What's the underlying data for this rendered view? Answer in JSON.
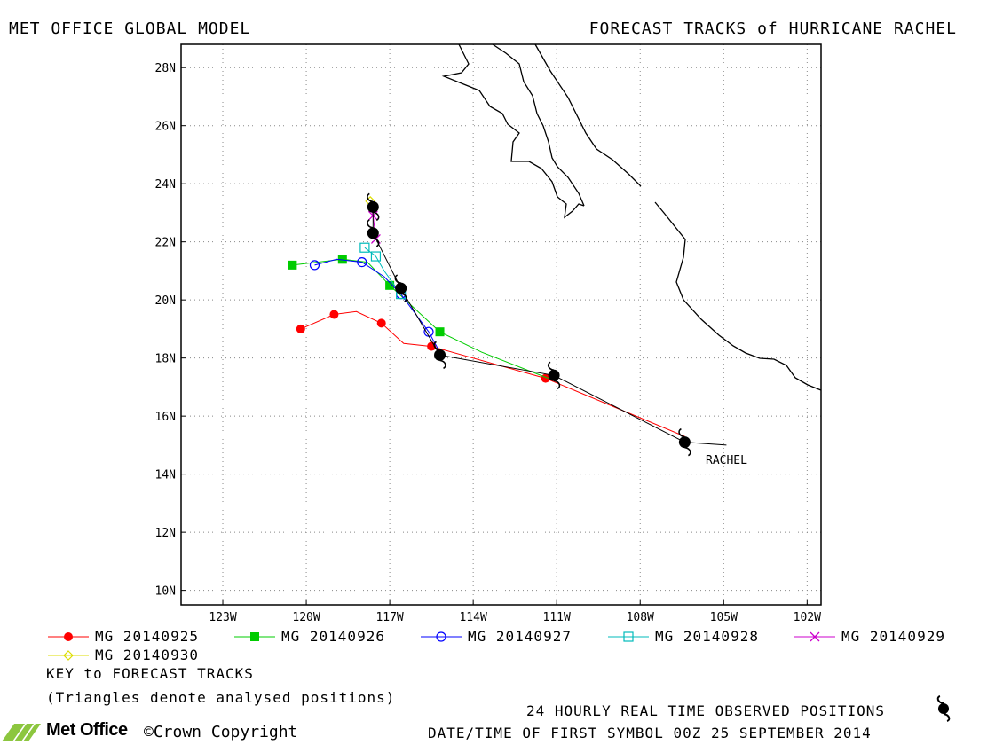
{
  "header": {
    "left": "MET OFFICE GLOBAL MODEL",
    "right": "FORECAST TRACKS of HURRICANE RACHEL"
  },
  "map": {
    "lat_ticks": [
      "28N",
      "26N",
      "24N",
      "22N",
      "20N",
      "18N",
      "16N",
      "14N",
      "12N",
      "10N"
    ],
    "lon_ticks": [
      "123W",
      "120W",
      "117W",
      "114W",
      "111W",
      "108W",
      "105W",
      "102W"
    ],
    "lon_range": [
      -124.5,
      -101.5
    ],
    "lat_range": [
      9.5,
      28.8
    ],
    "grid": true,
    "storm_label": "RACHEL"
  },
  "chart_data": {
    "type": "map-tracks",
    "observed_track": {
      "name": "24 HOURLY REAL TIME OBSERVED POSITIONS",
      "color": "#000000",
      "points": [
        [
          -104.9,
          15.0
        ],
        [
          -106.4,
          15.1
        ],
        [
          -111.1,
          17.4
        ],
        [
          -115.2,
          18.1
        ],
        [
          -116.6,
          20.4
        ],
        [
          -117.6,
          22.3
        ],
        [
          -117.6,
          23.2
        ]
      ]
    },
    "series": [
      {
        "name": "MG 20140925",
        "color": "#ff0000",
        "marker": "filled-circle",
        "points": [
          [
            -106.4,
            15.3
          ],
          [
            -111.4,
            17.3
          ],
          [
            -115.5,
            18.4
          ],
          [
            -116.5,
            18.5
          ],
          [
            -117.3,
            19.2
          ],
          [
            -118.2,
            19.6
          ],
          [
            -119.0,
            19.5
          ],
          [
            -120.2,
            19.0
          ]
        ],
        "marked": [
          [
            -111.4,
            17.3
          ],
          [
            -115.5,
            18.4
          ],
          [
            -117.3,
            19.2
          ],
          [
            -119.0,
            19.5
          ],
          [
            -120.2,
            19.0
          ]
        ]
      },
      {
        "name": "MG 20140926",
        "color": "#00cc00",
        "marker": "filled-square",
        "points": [
          [
            -111.3,
            17.3
          ],
          [
            -113.7,
            18.2
          ],
          [
            -115.2,
            18.9
          ],
          [
            -117.0,
            20.5
          ],
          [
            -117.8,
            21.3
          ],
          [
            -118.7,
            21.4
          ],
          [
            -120.5,
            21.2
          ]
        ],
        "marked": [
          [
            -115.2,
            18.9
          ],
          [
            -117.0,
            20.5
          ],
          [
            -118.7,
            21.4
          ],
          [
            -120.5,
            21.2
          ]
        ]
      },
      {
        "name": "MG 20140927",
        "color": "#0000ff",
        "marker": "open-circle",
        "points": [
          [
            -115.2,
            18.2
          ],
          [
            -115.6,
            18.9
          ],
          [
            -116.6,
            20.2
          ],
          [
            -117.2,
            20.8
          ],
          [
            -118.0,
            21.3
          ],
          [
            -118.9,
            21.4
          ],
          [
            -119.7,
            21.2
          ]
        ],
        "marked": [
          [
            -115.6,
            18.9
          ],
          [
            -116.6,
            20.2
          ],
          [
            -118.0,
            21.3
          ],
          [
            -119.7,
            21.2
          ]
        ]
      },
      {
        "name": "MG 20140928",
        "color": "#00bbbb",
        "marker": "open-square",
        "points": [
          [
            -116.6,
            20.2
          ],
          [
            -117.2,
            21.0
          ],
          [
            -117.5,
            21.5
          ],
          [
            -117.9,
            21.8
          ]
        ],
        "marked": [
          [
            -116.6,
            20.2
          ],
          [
            -117.5,
            21.5
          ],
          [
            -117.9,
            21.8
          ]
        ]
      },
      {
        "name": "MG 20140929",
        "color": "#cc00cc",
        "marker": "x",
        "points": [
          [
            -117.5,
            22.1
          ],
          [
            -117.6,
            22.9
          ],
          [
            -117.7,
            23.3
          ]
        ],
        "marked": [
          [
            -117.5,
            22.1
          ],
          [
            -117.6,
            22.9
          ]
        ]
      },
      {
        "name": "MG 20140930",
        "color": "#dddd00",
        "marker": "open-diamond",
        "points": [
          [
            -117.6,
            23.2
          ],
          [
            -117.7,
            23.4
          ]
        ],
        "marked": [
          [
            -117.7,
            23.4
          ]
        ]
      }
    ]
  },
  "legend": {
    "items": [
      {
        "label": "MG 20140925",
        "color": "#ff0000",
        "marker": "filled-circle"
      },
      {
        "label": "MG 20140926",
        "color": "#00cc00",
        "marker": "filled-square"
      },
      {
        "label": "MG 20140927",
        "color": "#0000ff",
        "marker": "open-circle"
      },
      {
        "label": "MG 20140928",
        "color": "#00bbbb",
        "marker": "open-square"
      },
      {
        "label": "MG 20140929",
        "color": "#cc00cc",
        "marker": "x"
      },
      {
        "label": "MG 20140930",
        "color": "#dddd00",
        "marker": "open-diamond"
      }
    ],
    "key_title": "KEY to FORECAST TRACKS",
    "key_note": "(Triangles denote analysed positions)"
  },
  "footer": {
    "observed_label": "24 HOURLY REAL TIME OBSERVED POSITIONS",
    "datetime": "DATE/TIME OF FIRST SYMBOL 00Z 25 SEPTEMBER 2014",
    "logo_text": "Met Office",
    "copyright": "©Crown Copyright"
  }
}
